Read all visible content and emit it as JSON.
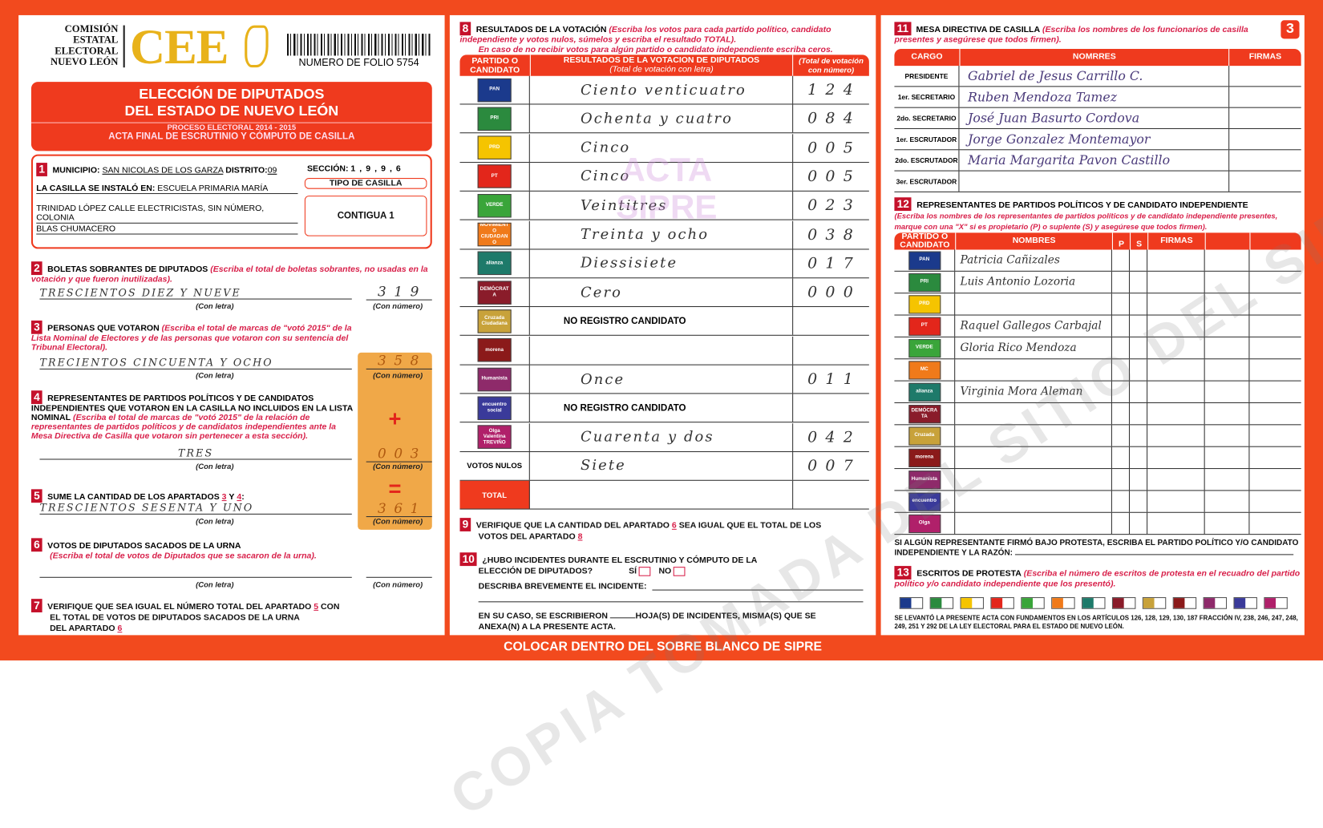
{
  "colors": {
    "frame": "#f24a1e",
    "header_red": "#ef3a1e",
    "logo_gold": "#e8b21a",
    "number_box": "#f0a848",
    "badge": "#c5112b"
  },
  "header": {
    "org": [
      "COMISIÓN",
      "ESTATAL",
      "ELECTORAL",
      "NUEVO LEÓN"
    ],
    "logo": "CEE",
    "folio": "NUMERO DE FOLIO 5754",
    "title1": "ELECCIÓN DE DIPUTADOS",
    "title2": "DEL ESTADO DE NUEVO LEÓN",
    "process": "PROCESO ELECTORAL  2014 - 2015",
    "acta": "ACTA FINAL DE ESCRUTINIO Y CÓMPUTO DE CASILLA",
    "page_number": "3"
  },
  "s1": {
    "num": "1",
    "municipio_label": "MUNICIPIO:",
    "municipio": "SAN NICOLAS DE LOS GARZA",
    "distrito_label": "DISTRITO:",
    "distrito": "09",
    "seccion_label": "SECCIÓN:",
    "seccion": "1 , 9 , 9 , 6",
    "instalo_label": "LA CASILLA SE INSTALÓ EN:",
    "lugar1": "ESCUELA PRIMARIA MARÍA",
    "lugar2": "TRINIDAD LÓPEZ CALLE ELECTRICISTAS, SIN NÚMERO, COLONIA",
    "lugar3": "BLAS CHUMACERO",
    "tipo_label": "TIPO DE CASILLA",
    "tipo": "CONTIGUA 1"
  },
  "labels": {
    "con_letra": "(Con letra)",
    "con_numero": "(Con número)",
    "plus": "+",
    "equals": "="
  },
  "s2": {
    "num": "2",
    "title": "BOLETAS SOBRANTES DE DIPUTADOS",
    "note": "(Escriba el total de boletas sobrantes, no usadas en la votación y que fueron inutilizadas).",
    "letra": "TRESCIENTOS DIEZ Y NUEVE",
    "numero": "3 1 9"
  },
  "s3": {
    "num": "3",
    "title": "PERSONAS QUE VOTARON",
    "note": "(Escriba el total de marcas de \"votó 2015\" de la Lista Nominal de Electores y de las personas que votaron con su sentencia del Tribunal Electoral).",
    "letra": "TRECIENTOS CINCUENTA Y OCHO",
    "numero": "3 5 8"
  },
  "s4": {
    "num": "4",
    "title": "REPRESENTANTES DE PARTIDOS POLÍTICOS Y DE CANDIDATOS INDEPENDIENTES QUE VOTARON EN LA CASILLA NO INCLUIDOS EN LA LISTA NOMINAL",
    "note": "(Escriba el total de marcas de \"votó 2015\" de la relación de representantes de partidos políticos y de candidatos independientes ante la Mesa Directiva de Casilla que votaron sin pertenecer a esta sección).",
    "letra": "TRES",
    "numero": "0 0 3"
  },
  "s5": {
    "num": "5",
    "title": "SUME LA CANTIDAD DE LOS APARTADOS",
    "a": "3",
    "y": "Y",
    "b": "4",
    "colon": ":",
    "letra": "TRESCIENTOS SESENTA Y UNO",
    "numero": "3 6 1"
  },
  "s6": {
    "num": "6",
    "title": "VOTOS DE DIPUTADOS SACADOS DE LA URNA",
    "note": "(Escriba el total de votos de Diputados que se sacaron de la urna)."
  },
  "s7": {
    "num": "7",
    "text1": "VERIFIQUE QUE SEA IGUAL EL NÚMERO TOTAL DEL APARTADO",
    "ref1": "5",
    "text1b": "CON",
    "text2": "EL TOTAL DE VOTOS DE DIPUTADOS SACADOS DE LA URNA",
    "text3": "DEL APARTADO",
    "ref2": "6"
  },
  "s8": {
    "num": "8",
    "title": "RESULTADOS DE LA VOTACIÓN",
    "note1": "(Escriba los votos para cada partido político, candidato independiente y votos nulos, súmelos y escriba el resultado TOTAL).",
    "note2": "En caso de no recibir votos para algún partido o candidato independiente escriba ceros.",
    "col_party": "PARTIDO O CANDIDATO",
    "col_letra": "RESULTADOS DE LA VOTACION DE DIPUTADOS",
    "col_letra_sub": "(Total de votación con letra)",
    "col_num": "(Total de votación con número)",
    "rows": [
      {
        "party": "PAN",
        "color": "#1b3a8c",
        "letra": "Ciento venticuatro",
        "numero": "1 2 4"
      },
      {
        "party": "PRI",
        "color": "#2b8a3e",
        "letra": "Ochenta y cuatro",
        "numero": "0 8 4"
      },
      {
        "party": "PRD",
        "color": "#f5c400",
        "letra": "Cinco",
        "numero": "0 0 5"
      },
      {
        "party": "PT",
        "color": "#e3261b",
        "letra": "Cinco",
        "numero": "0 0 5"
      },
      {
        "party": "VERDE",
        "color": "#3aa53a",
        "letra": "Veintitres",
        "numero": "0 2 3"
      },
      {
        "party": "MOVIMIENTO CIUDADANO",
        "color": "#f07a1a",
        "letra": "Treinta y ocho",
        "numero": "0 3 8"
      },
      {
        "party": "alianza",
        "color": "#1e7a6a",
        "letra": "Diessisiete",
        "numero": "0 1 7"
      },
      {
        "party": "DEMÓCRATA",
        "color": "#8a1c2a",
        "letra": "Cero",
        "numero": "0 0 0"
      },
      {
        "party": "Cruzada Ciudadana",
        "color": "#c8a23a",
        "letra": "NO REGISTRO CANDIDATO",
        "numero": "",
        "printed": true
      },
      {
        "party": "morena",
        "color": "#8b1a1a",
        "letra": "",
        "numero": ""
      },
      {
        "party": "Humanista",
        "color": "#8e2a6a",
        "letra": "Once",
        "numero": "0 1 1"
      },
      {
        "party": "encuentro social",
        "color": "#3a3a9a",
        "letra": "NO REGISTRO CANDIDATO",
        "numero": "",
        "printed": true
      },
      {
        "party": "Olga Valentina TREVIÑO",
        "color": "#b0206a",
        "letra": "Cuarenta y dos",
        "numero": "0 4 2"
      },
      {
        "party": "VOTOS NULOS",
        "color": "",
        "letra": "Siete",
        "numero": "0 0 7"
      },
      {
        "party": "TOTAL",
        "color": "#ef3a1e",
        "letra": "",
        "numero": ""
      }
    ]
  },
  "s9": {
    "num": "9",
    "text1": "VERIFIQUE QUE LA CANTIDAD DEL APARTADO",
    "ref1": "6",
    "text1b": "SEA IGUAL QUE EL TOTAL DE LOS",
    "text2": "VOTOS DEL APARTADO",
    "ref2": "8"
  },
  "s10": {
    "num": "10",
    "q1": "¿HUBO INCIDENTES DURANTE EL ESCRUTINIO Y CÓMPUTO DE LA",
    "q2": "ELECCIÓN DE DIPUTADOS?",
    "si": "SÍ",
    "no": "NO",
    "describe": "DESCRIBA BREVEMENTE EL INCIDENTE:",
    "caso1": "EN SU CASO, SE ESCRIBIERON",
    "caso1b": "HOJA(S) DE INCIDENTES, MISMA(S) QUE SE",
    "caso2": "ANEXA(N) A LA PRESENTE ACTA."
  },
  "s11": {
    "num": "11",
    "title": "MESA DIRECTIVA DE CASILLA",
    "note": "(Escriba los nombres de los funcionarios de casilla presentes y asegúrese que todos firmen).",
    "col_cargo": "CARGO",
    "col_nombres": "NOMRRES",
    "col_firmas": "FIRMAS",
    "rows": [
      {
        "cargo": "PRESIDENTE",
        "nombre": "Gabriel de Jesus Carrillo C."
      },
      {
        "cargo": "1er. SECRETARIO",
        "nombre": "Ruben Mendoza Tamez"
      },
      {
        "cargo": "2do. SECRETARIO",
        "nombre": "José Juan Basurto Cordova"
      },
      {
        "cargo": "1er. ESCRUTADOR",
        "nombre": "Jorge Gonzalez Montemayor"
      },
      {
        "cargo": "2do. ESCRUTADOR",
        "nombre": "Maria Margarita Pavon Castillo"
      },
      {
        "cargo": "3er. ESCRUTADOR",
        "nombre": ""
      }
    ]
  },
  "s12": {
    "num": "12",
    "title": "REPRESENTANTES DE PARTIDOS POLÍTICOS Y DE CANDIDATO INDEPENDIENTE",
    "note": "(Escriba los nombres de los representantes de partidos políticos y de candidato independiente presentes, marque con una \"X\" si es propietario (P) o suplente (S) y asegúrese que todos firmen).",
    "col_party": "PARTIDO O CANDIDATO",
    "col_nombres": "NOMBRES",
    "col_p": "P",
    "col_s": "S",
    "col_firmas": "FIRMAS",
    "rows": [
      {
        "party": "PAN",
        "color": "#1b3a8c",
        "nombre": "Patricia Cañizales"
      },
      {
        "party": "PRI",
        "color": "#2b8a3e",
        "nombre": "Luis Antonio Lozoria"
      },
      {
        "party": "PRD",
        "color": "#f5c400",
        "nombre": ""
      },
      {
        "party": "PT",
        "color": "#e3261b",
        "nombre": "Raquel Gallegos Carbajal"
      },
      {
        "party": "VERDE",
        "color": "#3aa53a",
        "nombre": "Gloria Rico Mendoza"
      },
      {
        "party": "MC",
        "color": "#f07a1a",
        "nombre": ""
      },
      {
        "party": "alianza",
        "color": "#1e7a6a",
        "nombre": "Virginia Mora Aleman"
      },
      {
        "party": "DEMÓCRATA",
        "color": "#8a1c2a",
        "nombre": ""
      },
      {
        "party": "Cruzada",
        "color": "#c8a23a",
        "nombre": ""
      },
      {
        "party": "morena",
        "color": "#8b1a1a",
        "nombre": ""
      },
      {
        "party": "Humanista",
        "color": "#8e2a6a",
        "nombre": ""
      },
      {
        "party": "encuentro",
        "color": "#3a3a9a",
        "nombre": ""
      },
      {
        "party": "Olga",
        "color": "#b0206a",
        "nombre": ""
      }
    ],
    "protesta1": "SI ALGÚN REPRESENTANTE FIRMÓ BAJO PROTESTA, ESCRIBA EL PARTIDO POLÍTICO Y/O CANDIDATO",
    "protesta2": "INDEPENDIENTE Y LA RAZÓN:"
  },
  "s13": {
    "num": "13",
    "title": "ESCRITOS DE PROTESTA",
    "note": "(Escriba el número de escritos de protesta en el recuadro del partido político y/o candidato independiente que los presentó).",
    "footer": "SE LEVANTÓ LA PRESENTE ACTA CON FUNDAMENTOS EN LOS ARTÍCULOS 126, 128, 129, 130, 187 FRACCIÓN IV, 238, 246, 247, 248, 249, 251 Y 292 DE LA LEY ELECTORAL PARA EL ESTADO DE NUEVO LEÓN."
  },
  "footer": {
    "banner": "COLOCAR DENTRO DEL SOBRE BLANCO DE SIPRE"
  },
  "watermark": {
    "text": "COPIA TOMADA DEL SITIO DEL SIPRE",
    "stamp": "ACTA SIPRE"
  }
}
